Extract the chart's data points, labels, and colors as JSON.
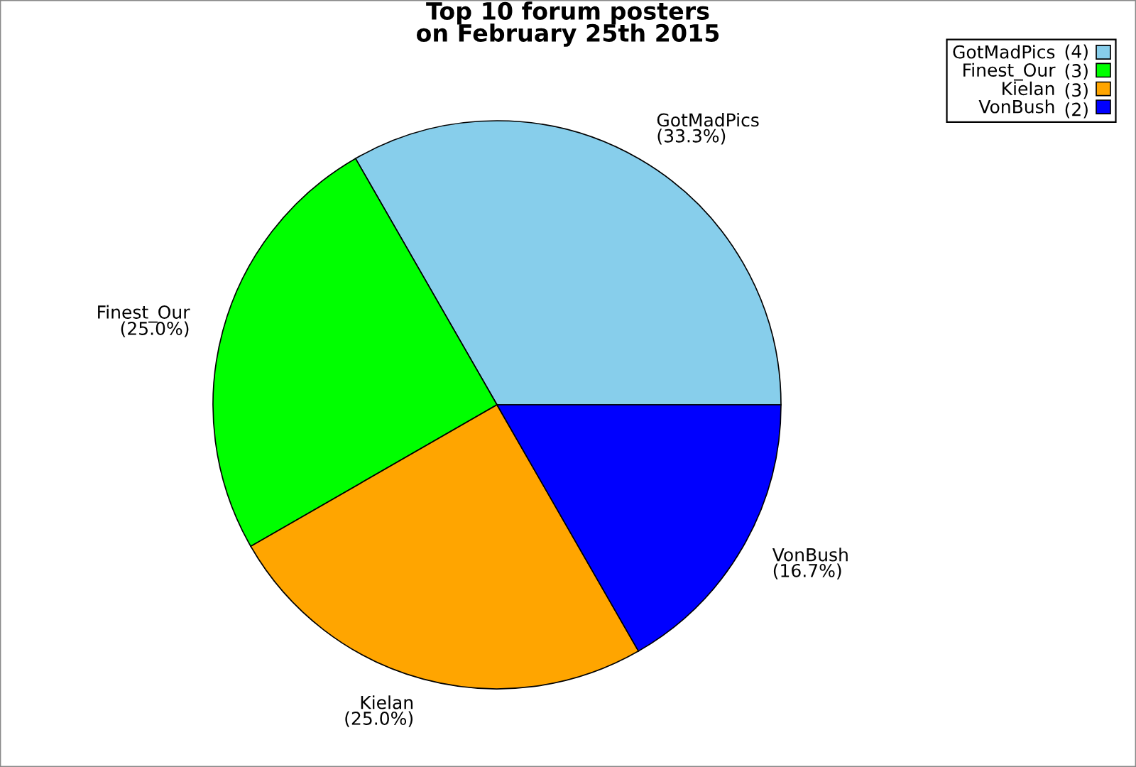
{
  "chart_data": {
    "type": "pie",
    "title": "Top 10 forum posters\non February 25th 2015",
    "categories": [
      "GotMadPics",
      "Finest_Our",
      "Kielan",
      "VonBush"
    ],
    "values": [
      33.3,
      25.0,
      25.0,
      16.7
    ],
    "value_labels": [
      "(33.3%)",
      "(25.0%)",
      "(25.0%)",
      "(16.7%)"
    ],
    "annotations": [
      "(4)",
      "(3)",
      "(3)",
      "(2)"
    ],
    "colors": [
      "#87ceeb",
      "#00ff00",
      "#ffa500",
      "#0000ff"
    ],
    "legend": "top right"
  }
}
